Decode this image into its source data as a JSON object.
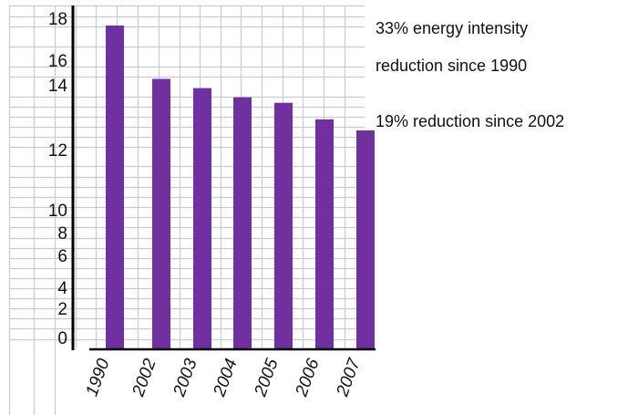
{
  "colors": {
    "bar": "#7030A0",
    "grid": "#c5cbd8",
    "axis": "#000000",
    "text": "#111111"
  },
  "annotations": [
    "33% energy intensity",
    "reduction since 1990",
    "19% reduction since 2002"
  ],
  "chart_data": {
    "type": "bar",
    "categories": [
      "1990",
      "2002",
      "2003",
      "2004",
      "2005",
      "2006",
      "2007"
    ],
    "values": [
      17.6,
      14.7,
      14.2,
      13.7,
      13.4,
      12.5,
      11.9
    ],
    "title": "",
    "xlabel": "",
    "ylabel": "",
    "yticks": [
      "18",
      "16",
      "14",
      "12",
      "10",
      "8",
      "6",
      "4",
      "2",
      "0"
    ],
    "ylim": [
      0,
      18
    ],
    "grid": true,
    "legend": "none"
  }
}
